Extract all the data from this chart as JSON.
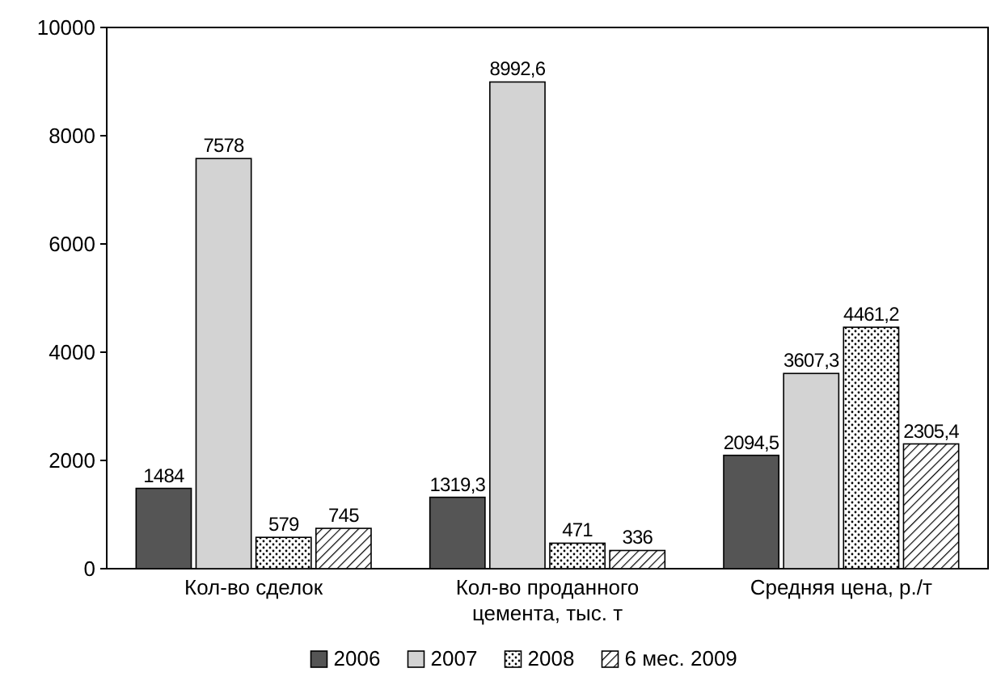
{
  "chart_data": {
    "type": "bar",
    "categories": [
      "Кол-во сделок",
      "Кол-во проданного цемента, тыс. т",
      "Средняя цена, р./т"
    ],
    "series": [
      {
        "name": "2006",
        "color": "#555555",
        "values": [
          1484,
          1319.3,
          2094.5
        ],
        "value_labels": [
          "1484",
          "1319,3",
          "2094,5"
        ]
      },
      {
        "name": "2007",
        "color": "#d3d3d3",
        "values": [
          7578,
          8992.6,
          3607.3
        ],
        "value_labels": [
          "7578",
          "8992,6",
          "3607,3"
        ]
      },
      {
        "name": "2008",
        "color": "#000000",
        "values": [
          579,
          471,
          4461.2
        ],
        "value_labels": [
          "579",
          "471",
          "4461,2"
        ]
      },
      {
        "name": "6 мес. 2009",
        "color": "#000000",
        "values": [
          745,
          336,
          2305.4
        ],
        "value_labels": [
          "745",
          "336",
          "2305,4"
        ]
      }
    ],
    "ylim": [
      0,
      10000
    ],
    "yticks": [
      0,
      2000,
      4000,
      6000,
      8000,
      10000
    ],
    "grid": false,
    "legend": "bottom"
  }
}
